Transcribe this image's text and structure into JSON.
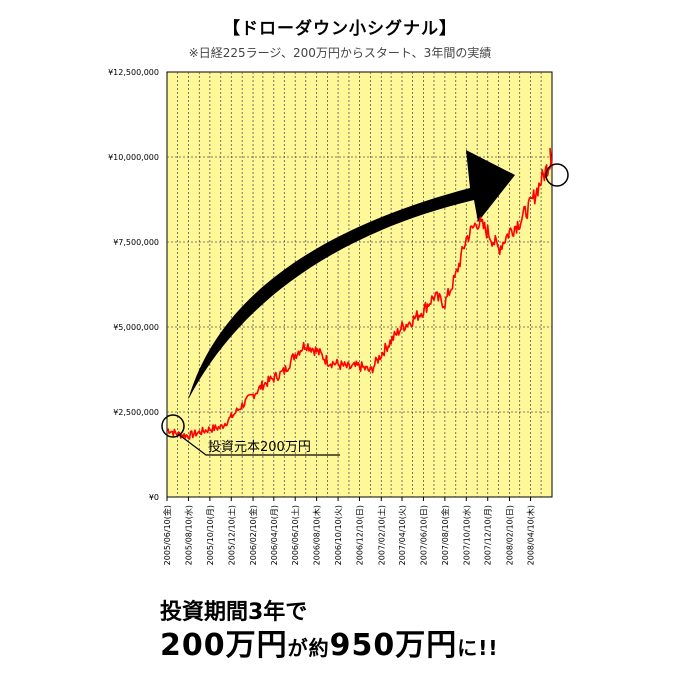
{
  "chart_data": {
    "type": "line",
    "title": "【ドローダウン小シグナル】",
    "subtitle": "※日経225ラージ、200万円からスタート、3年間の実績",
    "xlabel": "",
    "ylabel": "",
    "ylim": [
      0,
      12500000
    ],
    "y_ticks": [
      "¥0",
      "¥2,500,000",
      "¥5,000,000",
      "¥7,500,000",
      "¥10,000,000",
      "¥12,500,000"
    ],
    "y_tick_values": [
      0,
      2500000,
      5000000,
      7500000,
      10000000,
      12500000
    ],
    "x_ticks": [
      "2005/06/10(金)",
      "2005/08/10(水)",
      "2005/10/10(月)",
      "2005/12/10(土)",
      "2006/02/10(金)",
      "2006/04/10(月)",
      "2006/06/10(土)",
      "2006/08/10(木)",
      "2006/10/10(火)",
      "2006/12/10(日)",
      "2007/02/10(土)",
      "2007/04/10(火)",
      "2007/06/10(日)",
      "2007/08/10(金)",
      "2007/10/10(水)",
      "2007/12/10(月)",
      "2008/02/10(日)",
      "2008/04/10(木)"
    ],
    "grid": true,
    "series": [
      {
        "color": "#ff0000",
        "x": [
          "2005/06/10",
          "2005/07/10",
          "2005/08/10",
          "2005/09/10",
          "2005/10/10",
          "2005/11/10",
          "2005/12/10",
          "2006/01/10",
          "2006/02/10",
          "2006/03/10",
          "2006/04/10",
          "2006/05/10",
          "2006/06/10",
          "2006/07/10",
          "2006/08/10",
          "2006/09/10",
          "2006/10/10",
          "2006/11/10",
          "2006/12/10",
          "2007/01/10",
          "2007/02/10",
          "2007/03/10",
          "2007/04/10",
          "2007/05/10",
          "2007/06/10",
          "2007/07/10",
          "2007/08/10",
          "2007/09/10",
          "2007/10/10",
          "2007/11/10",
          "2007/12/10",
          "2008/01/10",
          "2008/02/10",
          "2008/03/10",
          "2008/04/10",
          "2008/05/10",
          "2008/06/10"
        ],
        "values": [
          2000000,
          1850000,
          1800000,
          1900000,
          2000000,
          2050000,
          2350000,
          2700000,
          3000000,
          3300000,
          3500000,
          3700000,
          4200000,
          4500000,
          4300000,
          4000000,
          3900000,
          3800000,
          3850000,
          3700000,
          4200000,
          4600000,
          5000000,
          5200000,
          5500000,
          5900000,
          5700000,
          6500000,
          7600000,
          8100000,
          7800000,
          7300000,
          7800000,
          8100000,
          8600000,
          9300000,
          10000000
        ]
      }
    ],
    "annotations": [
      "投資元本200万円"
    ]
  },
  "headline": {
    "line1": "投資期間3年で",
    "line2_a": "200万円",
    "line2_b": "が約",
    "line2_c": "950万円",
    "line2_d": "に!!"
  },
  "colors": {
    "plot_bg": "#fff899",
    "series": "#ff0000",
    "arrow": "#000000"
  }
}
